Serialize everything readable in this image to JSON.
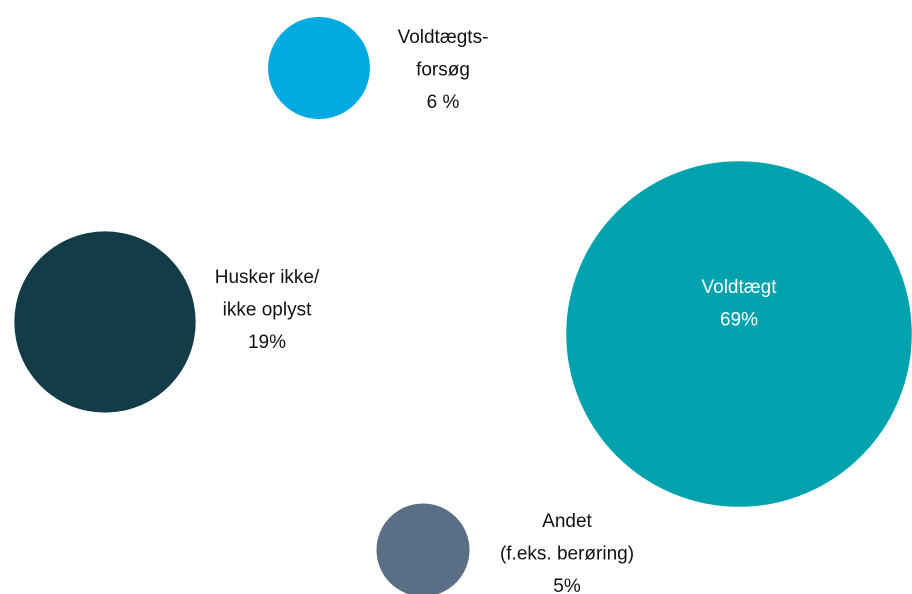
{
  "chart_data": {
    "type": "bubble",
    "categories": [
      [
        "Voldtægts-",
        "forsøg"
      ],
      [
        "Husker ikke/",
        "ikke oplyst"
      ],
      [
        "Voldtægt"
      ],
      [
        "Andet",
        "(f.eks. berøring)"
      ]
    ],
    "values": [
      6,
      19,
      69,
      5
    ],
    "value_labels": [
      "6 %",
      "19%",
      "69%",
      "5%"
    ],
    "colors": [
      "#00a9e0",
      "#133c47",
      "#00a3ad",
      "#5a6f85"
    ]
  }
}
